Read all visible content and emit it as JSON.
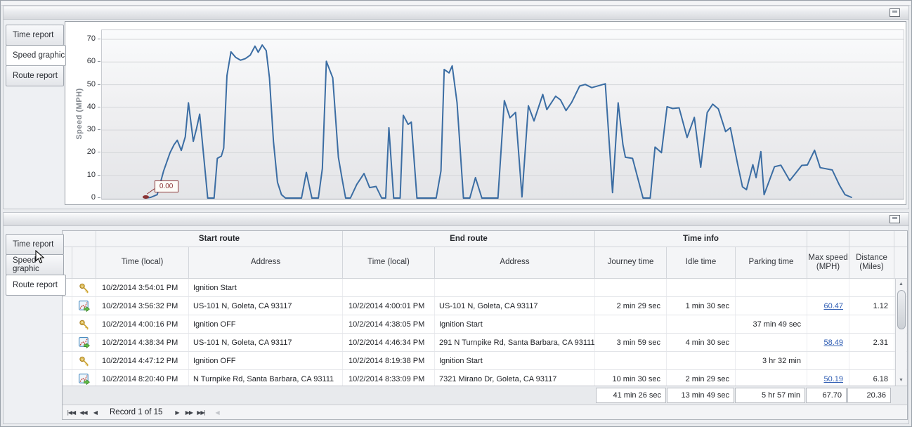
{
  "top_panel": {
    "tabs": [
      {
        "label": "Time report",
        "selected": false
      },
      {
        "label": "Speed graphic",
        "selected": true
      },
      {
        "label": "Route report",
        "selected": false
      }
    ]
  },
  "chart_data": {
    "type": "line",
    "title": "",
    "xlabel": "",
    "ylabel": "Speed (MPH)",
    "yticks": [
      0,
      10,
      20,
      30,
      40,
      50,
      60,
      70
    ],
    "ylim": [
      0,
      74
    ],
    "grid": true,
    "legend": "none",
    "line_color": "#3b6da3",
    "marker": {
      "x_pct": 5.4,
      "mph": 0,
      "label": "0.00",
      "color": "#8b3434"
    },
    "series": [
      {
        "name": "Speed (MPH)",
        "points": [
          [
            5.4,
            0
          ],
          [
            6.1,
            0.3
          ],
          [
            6.9,
            1.5
          ],
          [
            7.7,
            12
          ],
          [
            8.5,
            20
          ],
          [
            9.0,
            23.5
          ],
          [
            9.4,
            25.5
          ],
          [
            9.9,
            21
          ],
          [
            10.4,
            27
          ],
          [
            10.8,
            42
          ],
          [
            11.4,
            25
          ],
          [
            11.8,
            30.5
          ],
          [
            12.2,
            37
          ],
          [
            12.8,
            15
          ],
          [
            13.2,
            0
          ],
          [
            14.0,
            0
          ],
          [
            14.4,
            17.5
          ],
          [
            14.9,
            18.5
          ],
          [
            15.2,
            22
          ],
          [
            15.6,
            54
          ],
          [
            16.1,
            64.5
          ],
          [
            16.7,
            62
          ],
          [
            17.3,
            60.8
          ],
          [
            17.9,
            61.5
          ],
          [
            18.5,
            63
          ],
          [
            19.1,
            67
          ],
          [
            19.5,
            64.3
          ],
          [
            20.0,
            67.5
          ],
          [
            20.5,
            65
          ],
          [
            20.9,
            53
          ],
          [
            21.4,
            25
          ],
          [
            21.9,
            7
          ],
          [
            22.4,
            1.5
          ],
          [
            22.9,
            0
          ],
          [
            24.9,
            0
          ],
          [
            25.5,
            11.3
          ],
          [
            26.2,
            0
          ],
          [
            27.0,
            0
          ],
          [
            27.5,
            13
          ],
          [
            28.0,
            60.3
          ],
          [
            28.8,
            53
          ],
          [
            29.5,
            18
          ],
          [
            30.0,
            7.7
          ],
          [
            30.4,
            0
          ],
          [
            31.0,
            0
          ],
          [
            31.8,
            6
          ],
          [
            32.7,
            10.8
          ],
          [
            33.4,
            4.6
          ],
          [
            34.2,
            5.1
          ],
          [
            34.9,
            0
          ],
          [
            35.4,
            0
          ],
          [
            35.8,
            31
          ],
          [
            36.4,
            0
          ],
          [
            37.2,
            0
          ],
          [
            37.6,
            36.5
          ],
          [
            38.2,
            32.5
          ],
          [
            38.6,
            33.5
          ],
          [
            39.3,
            0
          ],
          [
            41.7,
            0
          ],
          [
            42.3,
            12
          ],
          [
            42.7,
            56.7
          ],
          [
            43.3,
            55.2
          ],
          [
            43.7,
            58.3
          ],
          [
            44.3,
            42
          ],
          [
            45.1,
            0
          ],
          [
            45.9,
            0
          ],
          [
            46.6,
            9
          ],
          [
            47.4,
            0
          ],
          [
            49.4,
            0
          ],
          [
            50.2,
            43
          ],
          [
            50.9,
            35.4
          ],
          [
            51.6,
            37.8
          ],
          [
            52.4,
            0.5
          ],
          [
            53.2,
            40.7
          ],
          [
            53.9,
            34
          ],
          [
            55.0,
            45.7
          ],
          [
            55.5,
            39
          ],
          [
            56.6,
            44.9
          ],
          [
            57.2,
            43.3
          ],
          [
            57.9,
            38.6
          ],
          [
            58.6,
            42.2
          ],
          [
            59.6,
            49.4
          ],
          [
            60.3,
            50.1
          ],
          [
            61.1,
            48.7
          ],
          [
            62.8,
            50.4
          ],
          [
            63.7,
            2.4
          ],
          [
            64.4,
            42
          ],
          [
            65.0,
            23.5
          ],
          [
            65.3,
            18
          ],
          [
            66.2,
            17.5
          ],
          [
            67.5,
            0
          ],
          [
            68.4,
            0
          ],
          [
            69.0,
            22.5
          ],
          [
            69.8,
            20
          ],
          [
            70.5,
            40.3
          ],
          [
            71.2,
            39.5
          ],
          [
            72.0,
            39.8
          ],
          [
            73.0,
            26.7
          ],
          [
            73.9,
            35.6
          ],
          [
            74.7,
            13.6
          ],
          [
            75.5,
            37.7
          ],
          [
            76.2,
            41.4
          ],
          [
            76.9,
            39.3
          ],
          [
            77.8,
            29.3
          ],
          [
            78.4,
            31
          ],
          [
            79.3,
            15
          ],
          [
            79.9,
            5
          ],
          [
            80.4,
            3.7
          ],
          [
            81.2,
            14.7
          ],
          [
            81.6,
            9
          ],
          [
            82.2,
            20.5
          ],
          [
            82.6,
            1.5
          ],
          [
            83.9,
            13.8
          ],
          [
            84.7,
            14.5
          ],
          [
            85.8,
            7.7
          ],
          [
            86.5,
            10.8
          ],
          [
            87.3,
            14.4
          ],
          [
            88.0,
            14.6
          ],
          [
            88.9,
            21.1
          ],
          [
            89.6,
            13.4
          ],
          [
            91.1,
            12.4
          ],
          [
            92.0,
            5.7
          ],
          [
            92.7,
            1.5
          ],
          [
            93.5,
            0.3
          ]
        ]
      }
    ]
  },
  "bottom_panel": {
    "tabs": [
      {
        "label": "Time report",
        "selected": false
      },
      {
        "label": "Speed graphic",
        "selected": false
      },
      {
        "label": "Route report",
        "selected": true
      }
    ],
    "table": {
      "group_headers": {
        "start": "Start route",
        "end": "End route",
        "time": "Time info"
      },
      "columns": {
        "start_time": "Time (local)",
        "start_address": "Address",
        "end_time": "Time (local)",
        "end_address": "Address",
        "journey": "Journey time",
        "idle": "Idle time",
        "parking": "Parking time",
        "max_speed": "Max speed (MPH)",
        "distance": "Distance (Miles)"
      },
      "rows": [
        {
          "icon": "key",
          "start_time": "10/2/2014 3:54:01 PM",
          "start_address": "Ignition Start",
          "end_time": "",
          "end_address": "",
          "journey": "",
          "idle": "",
          "parking": "",
          "max_speed": "",
          "distance": ""
        },
        {
          "icon": "route",
          "start_time": "10/2/2014 3:56:32 PM",
          "start_address": "US-101 N, Goleta, CA 93117",
          "end_time": "10/2/2014 4:00:01 PM",
          "end_address": "US-101 N, Goleta, CA 93117",
          "journey": "2 min 29 sec",
          "idle": "1 min 30 sec",
          "parking": "",
          "max_speed": "60.47",
          "distance": "1.12"
        },
        {
          "icon": "key",
          "start_time": "10/2/2014 4:00:16 PM",
          "start_address": "Ignition OFF",
          "end_time": "10/2/2014 4:38:05 PM",
          "end_address": "Ignition Start",
          "journey": "",
          "idle": "",
          "parking": "37 min 49 sec",
          "max_speed": "",
          "distance": ""
        },
        {
          "icon": "route",
          "start_time": "10/2/2014 4:38:34 PM",
          "start_address": "US-101 N, Goleta, CA 93117",
          "end_time": "10/2/2014 4:46:34 PM",
          "end_address": "291 N Turnpike Rd, Santa Barbara, CA 93111",
          "journey": "3 min 59 sec",
          "idle": "4 min 30 sec",
          "parking": "",
          "max_speed": "58.49",
          "distance": "2.31"
        },
        {
          "icon": "key",
          "start_time": "10/2/2014 4:47:12 PM",
          "start_address": "Ignition OFF",
          "end_time": "10/2/2014 8:19:38 PM",
          "end_address": "Ignition Start",
          "journey": "",
          "idle": "",
          "parking": "3 hr 32 min",
          "max_speed": "",
          "distance": ""
        },
        {
          "icon": "route",
          "start_time": "10/2/2014 8:20:40 PM",
          "start_address": "N Turnpike Rd, Santa Barbara, CA 93111",
          "end_time": "10/2/2014 8:33:09 PM",
          "end_address": "7321 Mirano Dr, Goleta, CA 93117",
          "journey": "10 min 30 sec",
          "idle": "2 min 29 sec",
          "parking": "",
          "max_speed": "50.19",
          "distance": "6.18"
        }
      ],
      "totals": {
        "journey": "41 min 26 sec",
        "idle": "13 min 49 sec",
        "parking": "5 hr 57 min",
        "max_speed": "67.70",
        "distance": "20.36"
      },
      "navigator": {
        "label": "Record 1 of 15",
        "first": "|◀◀",
        "prev_page": "◀◀",
        "prev": "◀",
        "next": "▶",
        "next_page": "▶▶",
        "last": "▶▶|",
        "hscroll_left": "◀"
      }
    }
  }
}
